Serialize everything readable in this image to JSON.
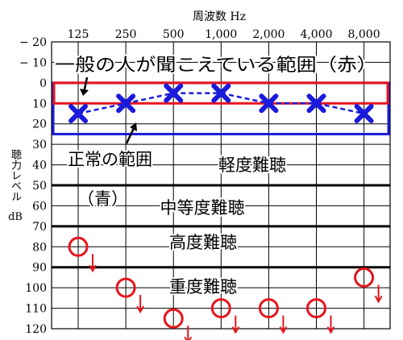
{
  "chart_data": {
    "type": "scatter",
    "title": "周波数 Hz",
    "xlabel": "周波数 Hz",
    "ylabel": "聴力レベル",
    "yunit": "dB",
    "x_ticks": [
      "125",
      "250",
      "500",
      "1,000",
      "2,000",
      "4,000",
      "8,000"
    ],
    "y_ticks": [
      "− 20",
      "− 10",
      "0",
      "10",
      "20",
      "30",
      "40",
      "50",
      "60",
      "70",
      "80",
      "90",
      "100",
      "110",
      "120"
    ],
    "ylim": [
      -20,
      120
    ],
    "y_inverted": true,
    "normal_series": {
      "name": "",
      "marker": "blue-x",
      "points": [
        {
          "x": "125",
          "y": 15
        },
        {
          "x": "250",
          "y": 10
        },
        {
          "x": "500",
          "y": 5
        },
        {
          "x": "1,000",
          "y": 5
        },
        {
          "x": "2,000",
          "y": 10
        },
        {
          "x": "4,000",
          "y": 10
        },
        {
          "x": "8,000",
          "y": 15
        }
      ]
    },
    "scaleout_series": {
      "name": "",
      "marker": "red-o-with-arrow",
      "points": [
        {
          "x": "125",
          "y": 80
        },
        {
          "x": "250",
          "y": 100
        },
        {
          "x": "500",
          "y": 115
        },
        {
          "x": "1,000",
          "y": 110
        },
        {
          "x": "2,000",
          "y": 110
        },
        {
          "x": "4,000",
          "y": 110
        },
        {
          "x": "8,000",
          "y": 95
        }
      ]
    },
    "bands": [
      {
        "label": "一般の人が聞こえている範囲（赤）",
        "y_from": 0,
        "y_to": 10,
        "color": "#e8141c"
      },
      {
        "label": "正常の範囲",
        "sub_label": "（青）",
        "y_from": 0,
        "y_to": 25,
        "color": "#1a1adc"
      }
    ],
    "zones": [
      {
        "label": "軽度難聴",
        "y": 30
      },
      {
        "label": "中等度難聴",
        "y": 55
      },
      {
        "label": "高度難聴",
        "y": 77
      },
      {
        "label": "重度難聴",
        "y": 97
      }
    ],
    "zone_boundaries": [
      50,
      70,
      90
    ],
    "grid": true,
    "colors": {
      "normal": "#1a1adc",
      "scaleout": "#e8141c",
      "axis": "#000000"
    }
  }
}
